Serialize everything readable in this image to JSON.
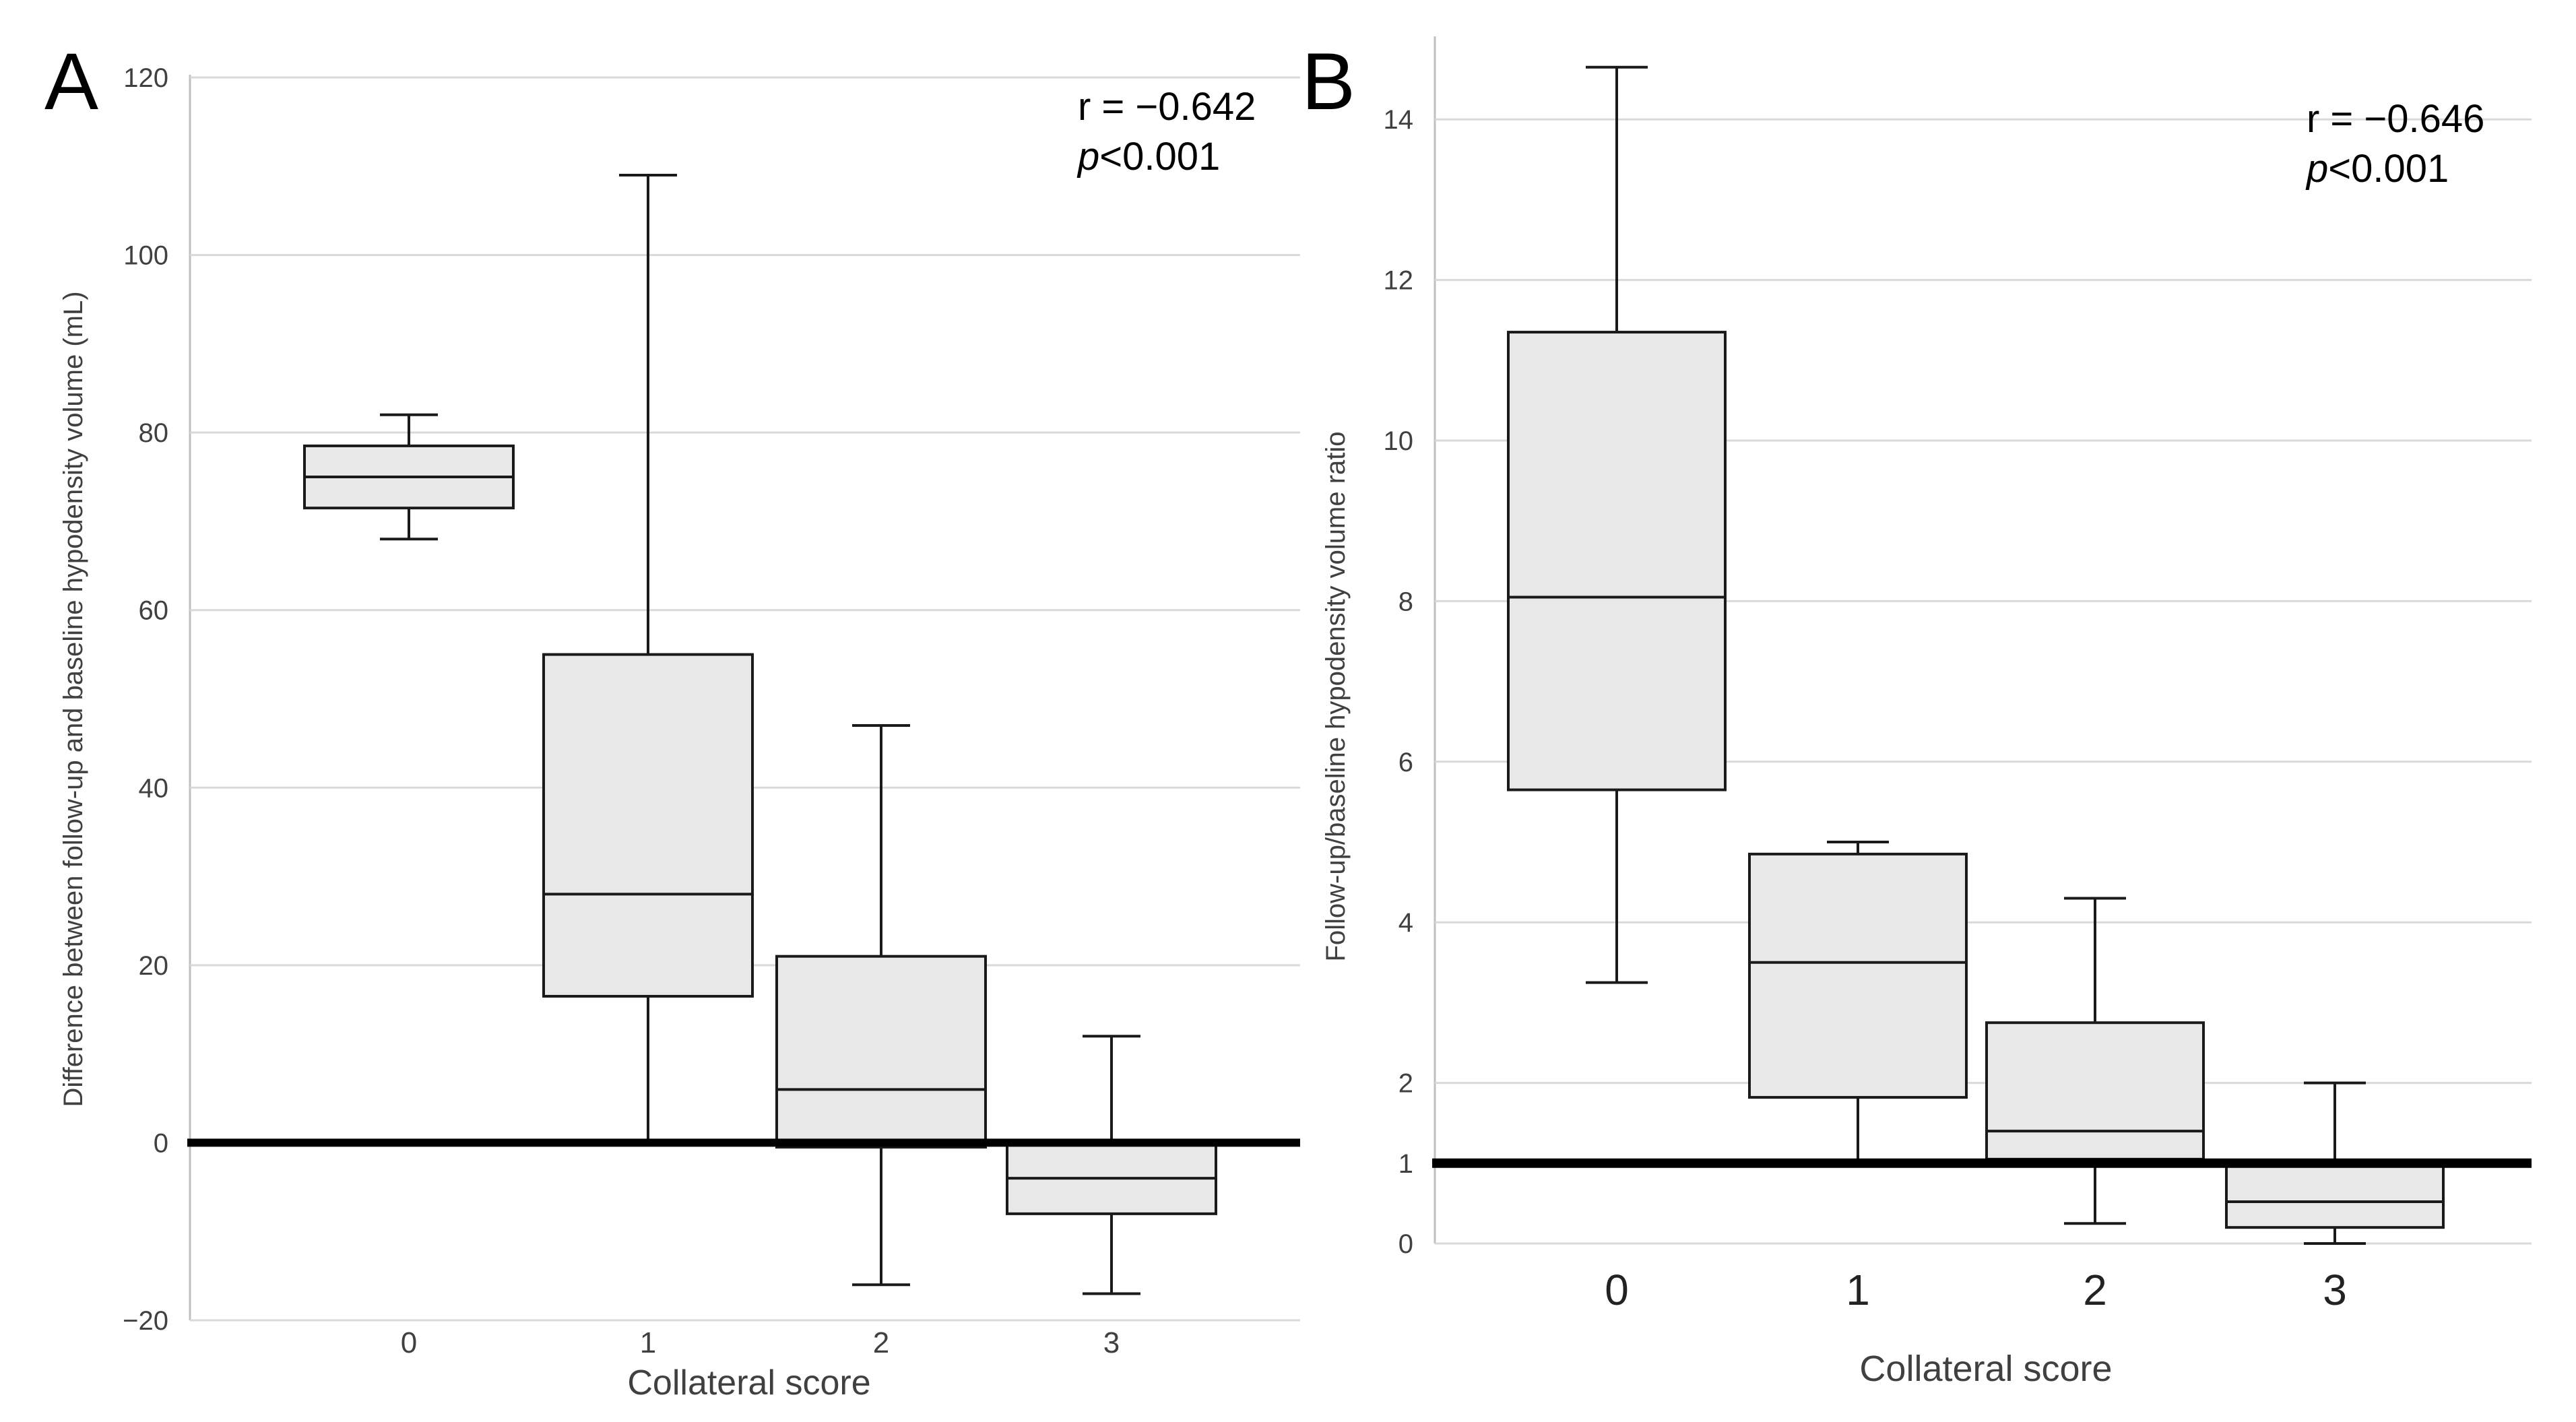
{
  "chart_data": [
    {
      "type": "box",
      "panel": "A",
      "title": "",
      "xlabel": "Collateral score",
      "ylabel": "Difference between follow-up and baseline hypodensity volume (mL)",
      "ylim": [
        -20,
        120
      ],
      "yticks": [
        -20,
        0,
        20,
        40,
        60,
        80,
        100,
        120
      ],
      "ytick_labels": [
        "−20",
        "0",
        "20",
        "40",
        "60",
        "80",
        "100",
        "120"
      ],
      "categories": [
        "0",
        "1",
        "2",
        "3"
      ],
      "boxes": [
        {
          "category": "0",
          "min": 68,
          "q1": 71.5,
          "median": 75,
          "q3": 78.5,
          "max": 82
        },
        {
          "category": "1",
          "min": 0,
          "q1": 16.5,
          "median": 28,
          "q3": 55,
          "max": 109
        },
        {
          "category": "2",
          "min": -16,
          "q1": -0.5,
          "median": 6,
          "q3": 21,
          "max": 47
        },
        {
          "category": "3",
          "min": -17,
          "q1": -8,
          "median": -4,
          "q3": 0,
          "max": 12
        }
      ],
      "reference_line": 0,
      "annotation": {
        "r": "r = −0.642",
        "p_italic": "p",
        "p_rest": "<0.001"
      }
    },
    {
      "type": "box",
      "panel": "B",
      "title": "",
      "xlabel": "Collateral score",
      "ylabel": "Follow-up/baseline hypodensity volume ratio",
      "ylim": [
        0,
        15
      ],
      "yticks": [
        0,
        1,
        2,
        4,
        6,
        8,
        10,
        12,
        14
      ],
      "ytick_labels": [
        "0",
        "1",
        "2",
        "4",
        "6",
        "8",
        "10",
        "12",
        "14"
      ],
      "categories": [
        "0",
        "1",
        "2",
        "3"
      ],
      "boxes": [
        {
          "category": "0",
          "min": 3.25,
          "q1": 5.65,
          "median": 8.05,
          "q3": 11.35,
          "max": 14.65
        },
        {
          "category": "1",
          "min": 1.0,
          "q1": 1.82,
          "median": 3.5,
          "q3": 4.85,
          "max": 5.0
        },
        {
          "category": "2",
          "min": 0.25,
          "q1": 1.05,
          "median": 1.4,
          "q3": 2.75,
          "max": 4.3
        },
        {
          "category": "3",
          "min": 0.0,
          "q1": 0.2,
          "median": 0.52,
          "q3": 1.0,
          "max": 2.0
        }
      ],
      "reference_line": 1,
      "annotation": {
        "r": "r = −0.646",
        "p_italic": "p",
        "p_rest": "<0.001"
      }
    }
  ]
}
